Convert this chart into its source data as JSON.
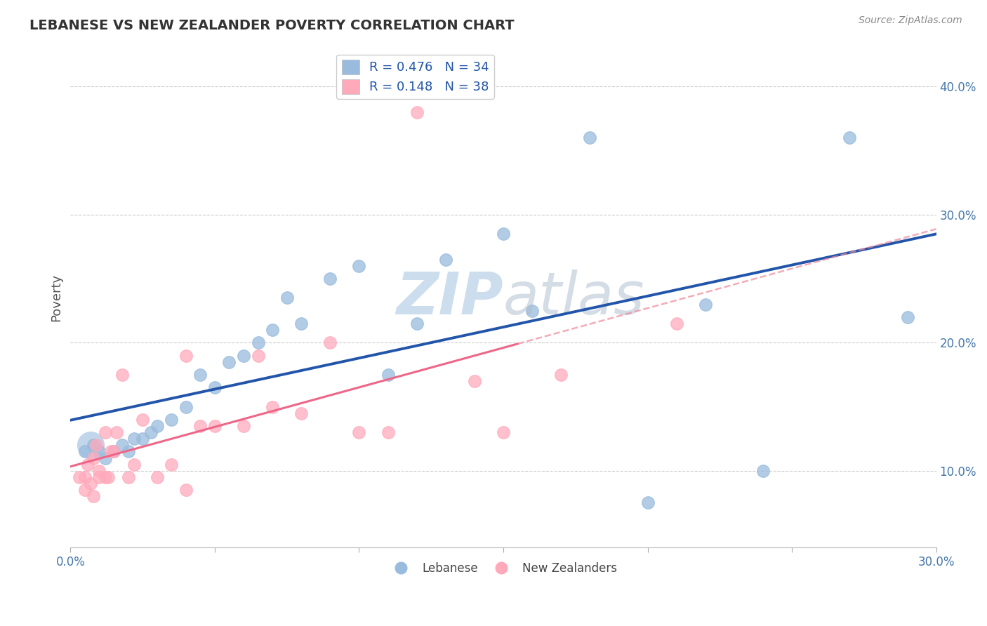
{
  "title": "LEBANESE VS NEW ZEALANDER POVERTY CORRELATION CHART",
  "source": "Source: ZipAtlas.com",
  "ylabel": "Poverty",
  "xlim": [
    0.0,
    0.3
  ],
  "ylim": [
    0.04,
    0.43
  ],
  "ytick_positions": [
    0.1,
    0.2,
    0.3,
    0.4
  ],
  "ytick_labels": [
    "10.0%",
    "20.0%",
    "30.0%",
    "40.0%"
  ],
  "legend_r1": "R = 0.476",
  "legend_n1": "N = 34",
  "legend_r2": "R = 0.148",
  "legend_n2": "N = 38",
  "blue_color": "#99BBDD",
  "pink_color": "#FFAABB",
  "blue_line_color": "#2255AA",
  "pink_line_color": "#EE6688",
  "pink_dash_color": "#EE8899",
  "watermark_color": "#CCDDED",
  "background_color": "#FFFFFF",
  "grid_color": "#CCCCCC",
  "blue_x": [
    0.005,
    0.008,
    0.01,
    0.012,
    0.015,
    0.018,
    0.02,
    0.022,
    0.025,
    0.028,
    0.03,
    0.035,
    0.04,
    0.045,
    0.05,
    0.055,
    0.06,
    0.065,
    0.07,
    0.075,
    0.08,
    0.09,
    0.1,
    0.11,
    0.12,
    0.13,
    0.15,
    0.16,
    0.18,
    0.2,
    0.22,
    0.24,
    0.27,
    0.29
  ],
  "blue_y": [
    0.115,
    0.12,
    0.115,
    0.11,
    0.115,
    0.12,
    0.115,
    0.125,
    0.125,
    0.13,
    0.135,
    0.14,
    0.15,
    0.175,
    0.165,
    0.185,
    0.19,
    0.2,
    0.21,
    0.235,
    0.215,
    0.25,
    0.26,
    0.175,
    0.215,
    0.265,
    0.285,
    0.225,
    0.36,
    0.075,
    0.23,
    0.1,
    0.36,
    0.22
  ],
  "pink_x": [
    0.003,
    0.005,
    0.005,
    0.006,
    0.007,
    0.008,
    0.008,
    0.009,
    0.01,
    0.01,
    0.012,
    0.012,
    0.013,
    0.014,
    0.015,
    0.016,
    0.018,
    0.02,
    0.022,
    0.025,
    0.03,
    0.035,
    0.04,
    0.04,
    0.045,
    0.05,
    0.06,
    0.065,
    0.07,
    0.08,
    0.09,
    0.1,
    0.11,
    0.12,
    0.14,
    0.15,
    0.17,
    0.21
  ],
  "pink_y": [
    0.095,
    0.085,
    0.095,
    0.105,
    0.09,
    0.08,
    0.11,
    0.12,
    0.095,
    0.1,
    0.095,
    0.13,
    0.095,
    0.115,
    0.115,
    0.13,
    0.175,
    0.095,
    0.105,
    0.14,
    0.095,
    0.105,
    0.085,
    0.19,
    0.135,
    0.135,
    0.135,
    0.19,
    0.15,
    0.145,
    0.2,
    0.13,
    0.13,
    0.38,
    0.17,
    0.13,
    0.175,
    0.215
  ],
  "pink_solid_xlim": [
    0.0,
    0.155
  ],
  "pink_dash_xlim": [
    0.155,
    0.3
  ]
}
